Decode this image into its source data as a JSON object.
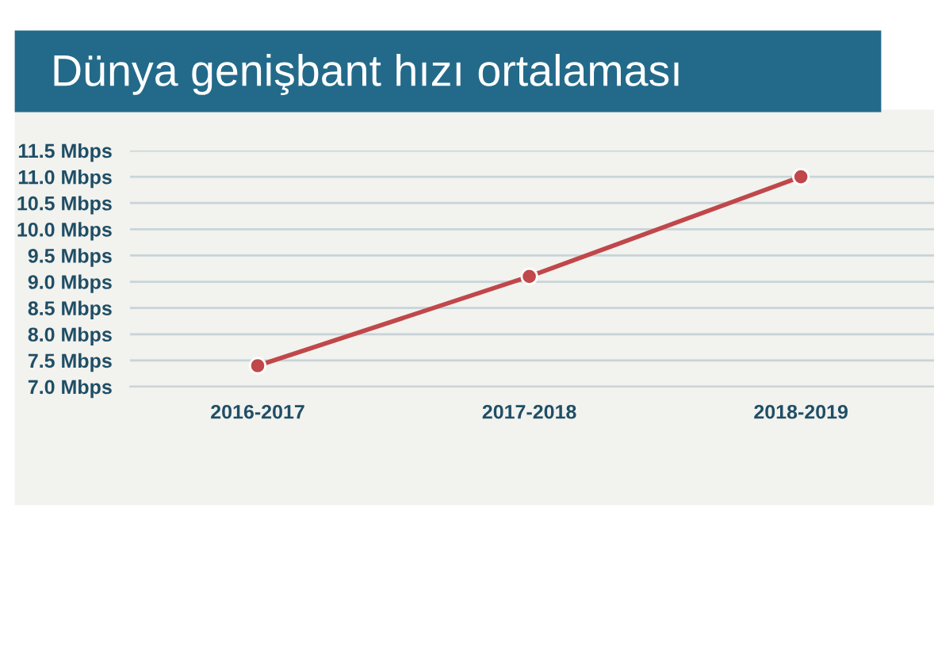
{
  "chart_data": {
    "type": "line",
    "title": "Dünya genişbant hızı ortalaması",
    "categories": [
      "2016-2017",
      "2017-2018",
      "2018-2019"
    ],
    "series": [
      {
        "color": "#c0474a",
        "values": [
          7.4,
          9.1,
          11.0
        ]
      }
    ],
    "ylim": [
      7.0,
      11.5
    ],
    "yticks": [
      {
        "value": 7.0,
        "label": "7.0 Mbps"
      },
      {
        "value": 7.5,
        "label": "7.5 Mbps"
      },
      {
        "value": 8.0,
        "label": "8.0 Mbps"
      },
      {
        "value": 8.5,
        "label": "8.5 Mbps"
      },
      {
        "value": 9.0,
        "label": "9.0 Mbps"
      },
      {
        "value": 9.5,
        "label": "9.5 Mbps"
      },
      {
        "value": 10.0,
        "label": "10.0 Mbps"
      },
      {
        "value": 10.5,
        "label": "10.5 Mbps"
      },
      {
        "value": 11.0,
        "label": "11.0 Mbps"
      },
      {
        "value": 11.5,
        "label": "11.5 Mbps"
      }
    ],
    "grid": "y",
    "marker": "circle",
    "line_style": "solid"
  }
}
